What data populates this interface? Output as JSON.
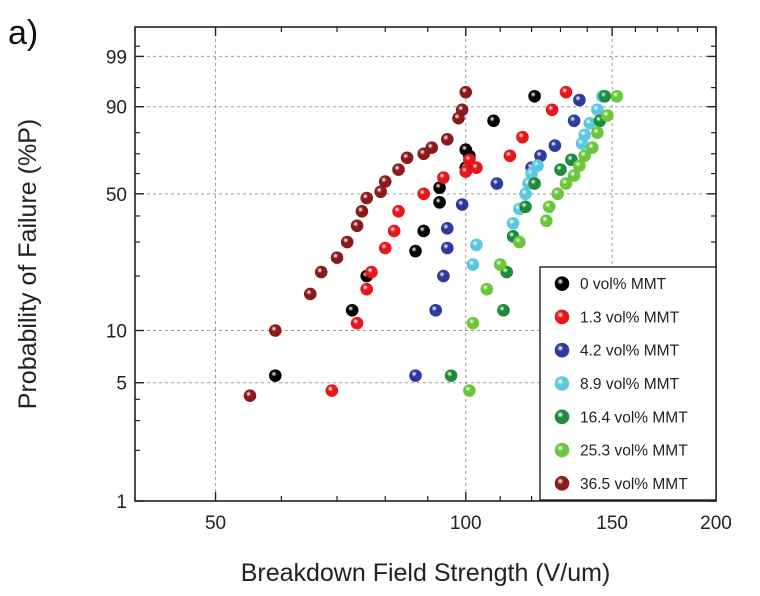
{
  "panel_label": "a)",
  "chart_data": {
    "type": "scatter",
    "title": "",
    "xlabel": "Breakdown Field Strength (V/um)",
    "ylabel": "Probability of Failure (%P)",
    "x_scale": "log",
    "y_scale": "weibull",
    "xlim": [
      40,
      200
    ],
    "ylim": [
      1,
      99.9
    ],
    "x_ticks": [
      50,
      100,
      150,
      200
    ],
    "y_ticks": [
      1,
      5,
      10,
      50,
      90,
      99
    ],
    "grid": true,
    "legend_position": "bottom-right",
    "series": [
      {
        "name": "0 vol% MMT",
        "color": "#000000",
        "points": [
          [
            59,
            5.5
          ],
          [
            73,
            13
          ],
          [
            76,
            20
          ],
          [
            87,
            27
          ],
          [
            89,
            34
          ],
          [
            93,
            46
          ],
          [
            93,
            53
          ],
          [
            100,
            63
          ],
          [
            101,
            69
          ],
          [
            108,
            85
          ],
          [
            121,
            93
          ],
          [
            100,
            72
          ]
        ]
      },
      {
        "name": "1.3 vol% MMT",
        "color": "#e8151b",
        "points": [
          [
            69,
            4.5
          ],
          [
            74,
            11
          ],
          [
            76,
            17
          ],
          [
            77,
            21
          ],
          [
            80,
            28
          ],
          [
            82,
            34
          ],
          [
            83,
            42
          ],
          [
            89,
            50
          ],
          [
            94,
            58
          ],
          [
            101,
            67
          ],
          [
            103,
            63
          ],
          [
            113,
            69
          ],
          [
            117,
            78
          ],
          [
            127,
            89
          ],
          [
            132,
            94
          ],
          [
            100,
            61
          ]
        ]
      },
      {
        "name": "4.2 vol% MMT",
        "color": "#2b3a9e",
        "points": [
          [
            87,
            5.5
          ],
          [
            92,
            13
          ],
          [
            94,
            20
          ],
          [
            95,
            28
          ],
          [
            95,
            35
          ],
          [
            99,
            45
          ],
          [
            109,
            55
          ],
          [
            120,
            63
          ],
          [
            123,
            69
          ],
          [
            128,
            74
          ],
          [
            135,
            85
          ],
          [
            137,
            92
          ]
        ]
      },
      {
        "name": "8.9 vol% MMT",
        "color": "#5cc8e0",
        "points": [
          [
            102,
            23
          ],
          [
            103,
            29
          ],
          [
            114,
            37
          ],
          [
            116,
            43
          ],
          [
            118,
            50
          ],
          [
            119,
            55
          ],
          [
            120,
            60
          ],
          [
            122,
            64
          ],
          [
            138,
            75
          ],
          [
            139,
            79
          ],
          [
            141,
            84
          ],
          [
            144,
            89
          ],
          [
            146,
            93
          ]
        ]
      },
      {
        "name": "16.4 vol% MMT",
        "color": "#1e8a3c",
        "points": [
          [
            96,
            5.5
          ],
          [
            111,
            13
          ],
          [
            112,
            21
          ],
          [
            114,
            32
          ],
          [
            118,
            44
          ],
          [
            121,
            55
          ],
          [
            130,
            62
          ],
          [
            134,
            67
          ],
          [
            145,
            85
          ],
          [
            147,
            93
          ]
        ]
      },
      {
        "name": "25.3 vol% MMT",
        "color": "#6cc63a",
        "points": [
          [
            101,
            4.5
          ],
          [
            102,
            11
          ],
          [
            106,
            17
          ],
          [
            110,
            23
          ],
          [
            116,
            30
          ],
          [
            125,
            38
          ],
          [
            126,
            44
          ],
          [
            129,
            50
          ],
          [
            132,
            55
          ],
          [
            135,
            59
          ],
          [
            137,
            64
          ],
          [
            139,
            69
          ],
          [
            142,
            73
          ],
          [
            144,
            80
          ],
          [
            148,
            87
          ],
          [
            152,
            93
          ]
        ]
      },
      {
        "name": "36.5 vol% MMT",
        "color": "#8b1a1a",
        "points": [
          [
            55,
            4.2
          ],
          [
            59,
            10
          ],
          [
            65,
            16
          ],
          [
            67,
            21
          ],
          [
            70,
            25
          ],
          [
            72,
            30
          ],
          [
            74,
            36
          ],
          [
            75,
            42
          ],
          [
            76,
            48
          ],
          [
            79,
            51
          ],
          [
            80,
            56
          ],
          [
            83,
            62
          ],
          [
            85,
            68
          ],
          [
            89,
            70
          ],
          [
            91,
            73
          ],
          [
            95,
            77
          ],
          [
            98,
            86
          ],
          [
            99,
            89
          ],
          [
            100,
            94
          ]
        ]
      }
    ]
  }
}
